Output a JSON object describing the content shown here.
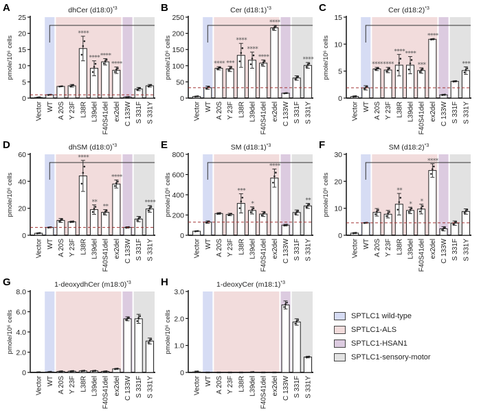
{
  "chart_data": [
    {
      "type": "bar",
      "letter": "A",
      "title": "dhCer (d18:0)",
      "title_sup": "+3",
      "ylabel": "pmole/10⁶ cells",
      "ylim": [
        0,
        25
      ],
      "yticks": [
        0,
        5,
        10,
        15,
        20,
        25
      ],
      "ytick_labels": [
        "0",
        "5",
        "10",
        "15",
        "20",
        "25"
      ],
      "categories": [
        "Vector",
        "WT",
        "A 20S",
        "Y 23F",
        "L38R",
        "L39del",
        "F40S41del",
        "ex2del",
        "C 133W",
        "S 331F",
        "S 331Y"
      ],
      "values": [
        0.2,
        1.0,
        3.6,
        3.8,
        15.3,
        9.2,
        11.2,
        8.6,
        0.3,
        2.8,
        3.8
      ],
      "errors": [
        0.1,
        0.1,
        0.1,
        0.4,
        3.8,
        2.3,
        1.0,
        1.0,
        0.1,
        0.5,
        0.4
      ],
      "significance": [
        "",
        "",
        "",
        "",
        "****",
        "****",
        "****",
        "****",
        "",
        "",
        ""
      ],
      "bracket": true,
      "wt_reference_line": true
    },
    {
      "type": "bar",
      "letter": "B",
      "title": "Cer (d18:1)",
      "title_sup": "+3",
      "ylabel": "pmole/10⁶ cells",
      "ylim": [
        0,
        250
      ],
      "yticks": [
        0,
        50,
        100,
        150,
        200,
        250
      ],
      "ytick_labels": [
        "0",
        "50",
        "100",
        "150",
        "200",
        "250"
      ],
      "categories": [
        "Vector",
        "WT",
        "A 20S",
        "Y 23F",
        "L38R",
        "L39del",
        "F40S41del",
        "ex2del",
        "C 133W",
        "S 331F",
        "S 331Y"
      ],
      "values": [
        5,
        32,
        92,
        90,
        132,
        117,
        108,
        217,
        15,
        62,
        101
      ],
      "errors": [
        1,
        5,
        5,
        8,
        37,
        25,
        10,
        8,
        1,
        7,
        9
      ],
      "significance": [
        "",
        "",
        "****",
        "***",
        "****",
        "****",
        "****",
        "****",
        "",
        "",
        "****"
      ],
      "bracket": true,
      "wt_reference_line": true
    },
    {
      "type": "bar",
      "letter": "C",
      "title": "Cer (d18:2)",
      "title_sup": "+3",
      "ylabel": "pmole/10⁶ cells",
      "ylim": [
        0,
        15
      ],
      "yticks": [
        0,
        5,
        10,
        15
      ],
      "ytick_labels": [
        "0",
        "5",
        "10",
        "15"
      ],
      "categories": [
        "Vector",
        "WT",
        "A 20S",
        "Y 23F",
        "L38R",
        "L39del",
        "F40S41del",
        "ex2del",
        "C 133W",
        "S 331F",
        "S 331Y"
      ],
      "values": [
        0.3,
        1.9,
        5.4,
        5.2,
        6.1,
        6.1,
        5.1,
        10.9,
        0.6,
        3.1,
        5.1
      ],
      "errors": [
        0.1,
        0.4,
        0.3,
        0.5,
        2.0,
        1.6,
        0.5,
        0.1,
        0.1,
        0.1,
        0.7
      ],
      "significance": [
        "",
        "",
        "****",
        "****",
        "****",
        "****",
        "***",
        "****",
        "",
        "",
        "***"
      ],
      "bracket": true,
      "wt_reference_line": true
    },
    {
      "type": "bar",
      "letter": "D",
      "title": "dhSM (d18:0)",
      "title_sup": "+3",
      "ylabel": "pmole/10⁶ cells",
      "ylim": [
        0,
        60
      ],
      "yticks": [
        0,
        20,
        40,
        60
      ],
      "ytick_labels": [
        "0",
        "20",
        "40",
        "60"
      ],
      "categories": [
        "Vector",
        "WT",
        "A 20S",
        "Y 23F",
        "L38R",
        "L39del",
        "F40S41del",
        "ex2del",
        "C 133W",
        "S 331F",
        "S 331Y"
      ],
      "values": [
        1.5,
        5.8,
        11,
        10,
        44,
        19,
        17,
        38,
        5.8,
        12,
        19.5
      ],
      "errors": [
        0.3,
        0.3,
        1.5,
        0.5,
        11.5,
        3.5,
        2,
        3,
        0.5,
        2,
        2.5
      ],
      "significance": [
        "",
        "",
        "",
        "",
        "****",
        "**",
        "**",
        "****",
        "",
        "",
        "****"
      ],
      "bracket": true,
      "wt_reference_line": true
    },
    {
      "type": "bar",
      "letter": "E",
      "title": "SM (d18:1)",
      "title_sup": "+3",
      "ylabel": "pmole/10⁶ cells",
      "ylim": [
        0,
        800
      ],
      "yticks": [
        0,
        200,
        400,
        600,
        800
      ],
      "ytick_labels": [
        "0",
        "200",
        "400",
        "600",
        "800"
      ],
      "categories": [
        "Vector",
        "WT",
        "A 20S",
        "Y 23F",
        "L38R",
        "L39del",
        "F40S41del",
        "ex2del",
        "C 133W",
        "S 331F",
        "S 331Y"
      ],
      "values": [
        40,
        130,
        215,
        205,
        315,
        245,
        210,
        565,
        100,
        225,
        290
      ],
      "errors": [
        3,
        12,
        8,
        12,
        95,
        35,
        25,
        90,
        8,
        25,
        25
      ],
      "significance": [
        "",
        "",
        "",
        "",
        "***",
        "*",
        "",
        "****",
        "",
        "",
        "**"
      ],
      "bracket": true,
      "wt_reference_line": true
    },
    {
      "type": "bar",
      "letter": "F",
      "title": "SM (d18:2)",
      "title_sup": "+3",
      "ylabel": "pmole/10⁶ cells",
      "ylim": [
        0,
        30
      ],
      "yticks": [
        0,
        10,
        20,
        30
      ],
      "ytick_labels": [
        "0",
        "10",
        "20",
        "30"
      ],
      "categories": [
        "Vector",
        "WT",
        "A 20S",
        "Y 23F",
        "L38R",
        "L39del",
        "F40S41del",
        "ex2del",
        "C 133W",
        "S 331F",
        "S 331Y"
      ],
      "values": [
        0.8,
        4.6,
        8.5,
        7.8,
        11.5,
        9.2,
        9.7,
        24,
        2.4,
        4.5,
        8.8
      ],
      "errors": [
        0.2,
        0.1,
        1.4,
        1.4,
        4,
        1.2,
        1.8,
        2.5,
        0.8,
        0.8,
        1
      ],
      "significance": [
        "",
        "",
        "",
        "",
        "**",
        "*",
        "*",
        "****",
        "",
        "",
        ""
      ],
      "bracket": true,
      "wt_reference_line": true
    },
    {
      "type": "bar",
      "letter": "G",
      "title": "1-deoxydhCer (m18:0)",
      "title_sup": "+3",
      "ylabel": "pmole/10⁶ cells",
      "ylim": [
        0,
        8
      ],
      "yticks": [
        0,
        2,
        4,
        6,
        8
      ],
      "ytick_labels": [
        "0",
        "2.0",
        "4.0",
        "6.0",
        "8.0"
      ],
      "categories": [
        "Vector",
        "WT",
        "A 20S",
        "Y 23F",
        "L38R",
        "L39del",
        "F40S41del",
        "ex2del",
        "C 133W",
        "S 331F",
        "S 331Y"
      ],
      "values": [
        0.02,
        0.05,
        0.1,
        0.12,
        0.15,
        0.15,
        0.1,
        0.35,
        5.3,
        5.3,
        3.1
      ],
      "errors": [
        0.01,
        0.02,
        0.03,
        0.04,
        0.04,
        0.04,
        0.03,
        0.05,
        0.2,
        0.45,
        0.3
      ],
      "significance": [
        "",
        "",
        "",
        "",
        "",
        "",
        "",
        "",
        "",
        "",
        ""
      ],
      "bracket": false,
      "wt_reference_line": false
    },
    {
      "type": "bar",
      "letter": "H",
      "title": "1-deoxyCer (m18:1)",
      "title_sup": "+3",
      "ylabel": "pmole/10⁶ cells",
      "ylim": [
        0,
        3
      ],
      "yticks": [
        0,
        1,
        2,
        3
      ],
      "ytick_labels": [
        "0",
        "1.0",
        "2.0",
        "3.0"
      ],
      "categories": [
        "Vector",
        "WT",
        "A 20S",
        "Y 23F",
        "L38R",
        "L39del",
        "F40S41del",
        "ex2del",
        "C 133W",
        "S 331F",
        "S 331Y"
      ],
      "values": [
        0.02,
        0,
        0,
        0,
        0,
        0.01,
        0,
        0,
        2.5,
        1.87,
        0.57
      ],
      "errors": [
        0.03,
        0,
        0,
        0,
        0,
        0.01,
        0,
        0,
        0.15,
        0.12,
        0.03
      ],
      "significance": [
        "",
        "",
        "",
        "",
        "",
        "",
        "",
        "",
        "",
        "",
        ""
      ],
      "bracket": false,
      "wt_reference_line": false
    }
  ],
  "legend": [
    {
      "label": "SPTLC1 wild-type",
      "color": "#d6dcf4"
    },
    {
      "label": "SPTLC1-ALS",
      "color": "#f2dcdc"
    },
    {
      "label": "SPTLC1-HSAN1",
      "color": "#dccbe0"
    },
    {
      "label": "SPTLC1-sensory-motor",
      "color": "#e2e2e2"
    }
  ],
  "group_colors": {
    "wt": "#d6dcf4",
    "als": "#f2dcdc",
    "hsan1": "#dccbe0",
    "sensory_motor": "#e2e2e2",
    "reference_line": "#a03030"
  }
}
